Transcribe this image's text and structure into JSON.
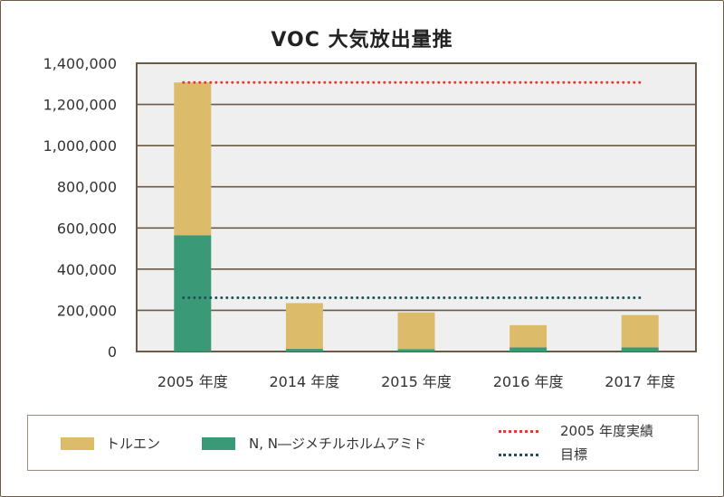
{
  "chart_data": {
    "type": "bar",
    "stacked": true,
    "title": "VOC 大気放出量推",
    "categories": [
      "2005 年度",
      "2014 年度",
      "2015 年度",
      "2016 年度",
      "2017 年度"
    ],
    "series": [
      {
        "name": "N, N―ジメチルホルムアミド",
        "color": "#3a9a78",
        "values": [
          565000,
          13000,
          12000,
          20000,
          20000
        ]
      },
      {
        "name": "トルエン",
        "color": "#dcbb6a",
        "values": [
          742000,
          222000,
          178000,
          108000,
          157000
        ]
      }
    ],
    "reference_lines": [
      {
        "name": "2005 年度実績",
        "color": "#e8392c",
        "value": 1307000
      },
      {
        "name": "目標",
        "color": "#1f4f5a",
        "value": 261000
      }
    ],
    "yticks": [
      "0",
      "200,000",
      "400,000",
      "600,000",
      "800,000",
      "1,000,000",
      "1,200,000",
      "1,400,000"
    ],
    "ylim": [
      0,
      1400000
    ],
    "grid": true
  }
}
